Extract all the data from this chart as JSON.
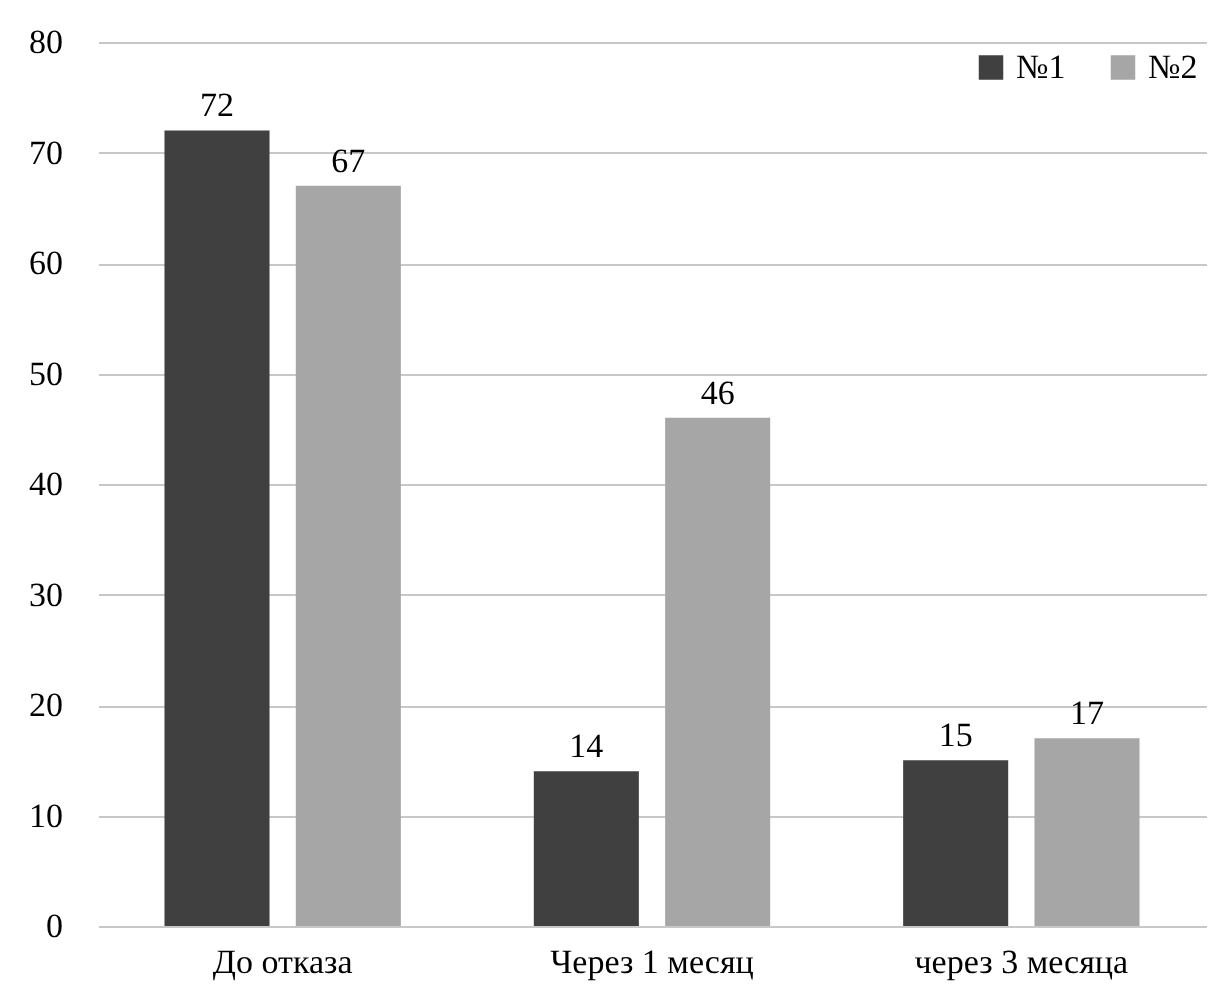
{
  "chart_data": {
    "type": "bar",
    "categories": [
      "До отказа",
      "Через 1 месяц",
      "через 3 месяца"
    ],
    "series": [
      {
        "name": "№1",
        "color": "#404040",
        "values": [
          72,
          14,
          15
        ]
      },
      {
        "name": "№2",
        "color": "#a6a6a6",
        "values": [
          67,
          46,
          17
        ]
      }
    ],
    "ylim": [
      0,
      80
    ],
    "yticks": [
      0,
      10,
      20,
      30,
      40,
      50,
      60,
      70,
      80
    ],
    "grid": "y",
    "legend": "top right",
    "data_labels": true
  }
}
